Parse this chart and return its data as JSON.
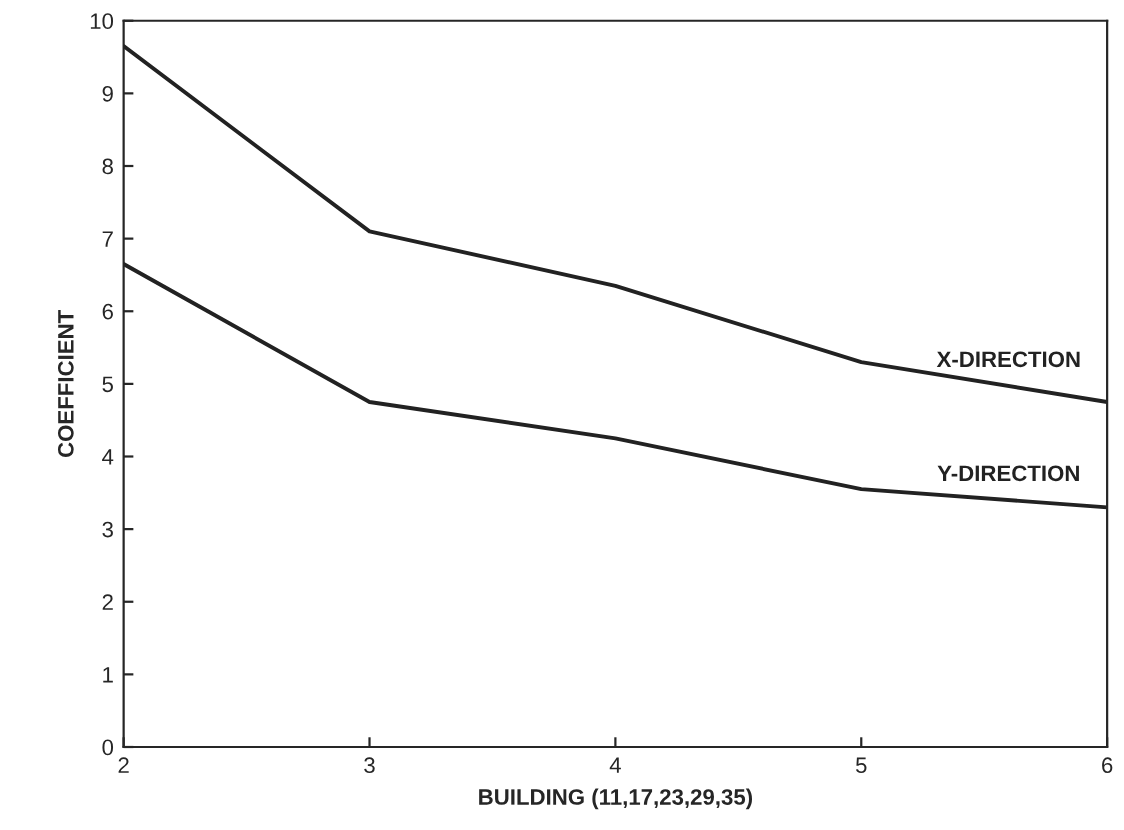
{
  "chart_data": {
    "type": "line",
    "xlabel": "BUILDING (11,17,23,29,35)",
    "ylabel": "COEFFICIENT",
    "x": [
      2,
      3,
      4,
      5,
      6
    ],
    "series": [
      {
        "name": "X-DIRECTION",
        "color": "#222222",
        "values": [
          9.65,
          7.1,
          6.35,
          5.3,
          4.75
        ]
      },
      {
        "name": "Y-DIRECTION",
        "color": "#222222",
        "values": [
          6.65,
          4.75,
          4.25,
          3.55,
          3.3
        ]
      }
    ],
    "xlim": [
      2,
      6
    ],
    "xticks": [
      2,
      3,
      4,
      5,
      6
    ],
    "ylim": [
      0,
      10
    ],
    "yticks": [
      0,
      1,
      2,
      3,
      4,
      5,
      6,
      7,
      8,
      9,
      10
    ],
    "grid": false,
    "legend": false,
    "marker": "none",
    "line_style": "solid"
  }
}
